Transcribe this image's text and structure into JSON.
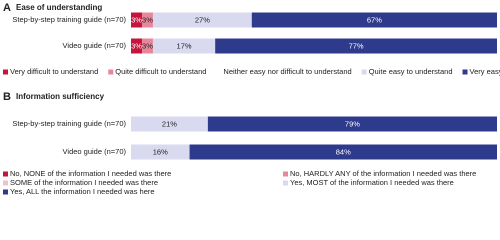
{
  "chart_data": [
    {
      "type": "bar",
      "orientation": "horizontal",
      "stacked": true,
      "panel": "A",
      "title": "Ease of understanding",
      "categories": [
        "Step-by-step training guide (n=70)",
        "Video guide (n=70)"
      ],
      "legend_columns": 5,
      "series": [
        {
          "name": "Very difficult to understand",
          "color": "#c5143d",
          "values": [
            3,
            3
          ],
          "value_labels": [
            "3%",
            "3%"
          ]
        },
        {
          "name": "Quite difficult to understand",
          "color": "#e8879c",
          "values": [
            3,
            3
          ],
          "value_labels": [
            "3%",
            "3%"
          ]
        },
        {
          "name": "Neither easy nor difficult to understand",
          "color": "#ffffff",
          "values": [
            0,
            0
          ]
        },
        {
          "name": "Quite easy to understand",
          "color": "#d9d9f0",
          "values": [
            27,
            17
          ],
          "value_labels": [
            "27%",
            "17%"
          ]
        },
        {
          "name": "Very easy to understand",
          "color": "#2e3a8c",
          "values": [
            67,
            77
          ],
          "value_labels": [
            "67%",
            "77%"
          ]
        }
      ]
    },
    {
      "type": "bar",
      "orientation": "horizontal",
      "stacked": true,
      "panel": "B",
      "title": "Information sufficiency",
      "categories": [
        "Step-by-step training guide (n=70)",
        "Video guide (n=70)"
      ],
      "legend_columns": 2,
      "series": [
        {
          "name": "No, NONE of the information I needed was there",
          "color": "#c5143d",
          "values": [
            0,
            0
          ]
        },
        {
          "name": "No, HARDLY ANY of the information I needed was there",
          "color": "#e8879c",
          "values": [
            0,
            0
          ]
        },
        {
          "name": "SOME of the information I needed was there",
          "color": "#f2c0cc",
          "values": [
            0,
            0
          ]
        },
        {
          "name": "Yes, MOST of the information I needed was there",
          "color": "#d9d9f0",
          "values": [
            21,
            16
          ],
          "value_labels": [
            "21%",
            "16%"
          ]
        },
        {
          "name": "Yes, ALL the information I needed was here",
          "color": "#2e3a8c",
          "values": [
            79,
            84
          ],
          "value_labels": [
            "79%",
            "84%"
          ]
        }
      ]
    }
  ]
}
